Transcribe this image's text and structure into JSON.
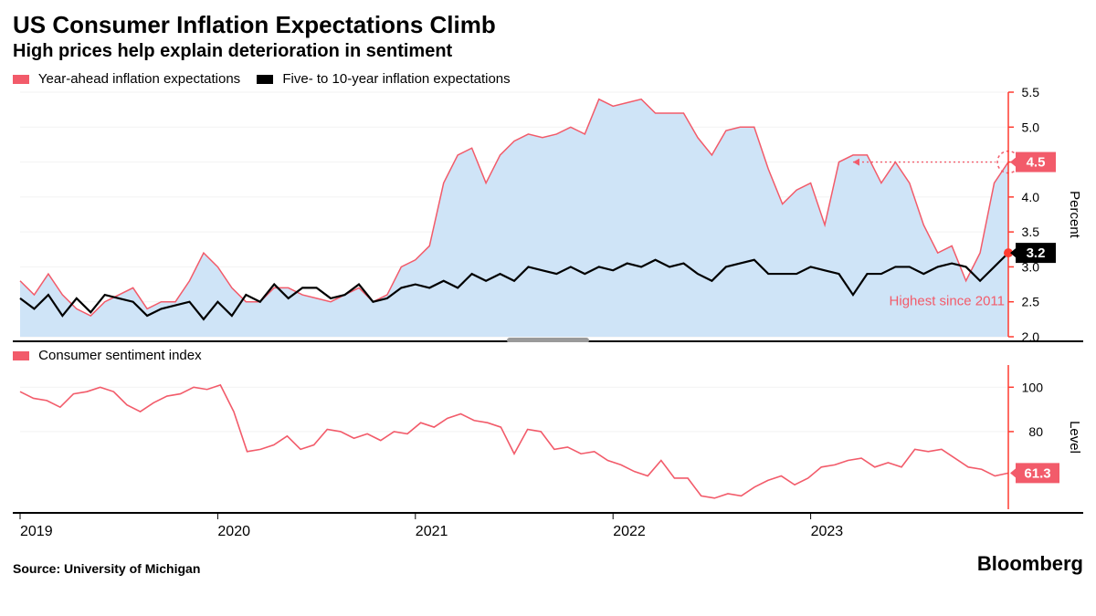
{
  "title": "US Consumer Inflation Expectations Climb",
  "subtitle": "High prices help explain deterioration in sentiment",
  "source": "Source: University of Michigan",
  "brand": "Bloomberg",
  "colors": {
    "pink": "#f25b6a",
    "black": "#000000",
    "area": "#cfe4f7",
    "grid": "#f2f2f2",
    "axis_red": "#ff3b30",
    "divider": "#000000",
    "handle": "#9a9a9a"
  },
  "x_axis": {
    "year_labels": [
      "2019",
      "2020",
      "2021",
      "2022",
      "2023"
    ],
    "label_fontsize": 16
  },
  "top_chart": {
    "legend": [
      {
        "label": "Year-ahead inflation expectations",
        "color": "#f25b6a"
      },
      {
        "label": "Five- to 10-year inflation expectations",
        "color": "#000000"
      }
    ],
    "y_axis": {
      "min": 2.0,
      "max": 5.5,
      "step": 0.5,
      "ticks": [
        "2.0",
        "2.5",
        "3.0",
        "3.5",
        "4.0",
        "4.5",
        "5.0",
        "5.5"
      ],
      "title": "Percent"
    },
    "series_year_ahead": {
      "type": "area-line",
      "color": "#f25b6a",
      "fill": "#cfe4f7",
      "line_width": 1.5,
      "callout": {
        "value": "4.5",
        "bg": "#f25b6a"
      },
      "values": [
        2.8,
        2.6,
        2.9,
        2.6,
        2.4,
        2.3,
        2.5,
        2.6,
        2.7,
        2.4,
        2.5,
        2.5,
        2.8,
        3.2,
        3.0,
        2.7,
        2.5,
        2.5,
        2.7,
        2.7,
        2.6,
        2.55,
        2.5,
        2.6,
        2.7,
        2.5,
        2.6,
        3.0,
        3.1,
        3.3,
        4.2,
        4.6,
        4.7,
        4.2,
        4.6,
        4.8,
        4.9,
        4.85,
        4.9,
        5.0,
        4.9,
        5.4,
        5.3,
        5.35,
        5.4,
        5.2,
        5.2,
        5.2,
        4.85,
        4.6,
        4.95,
        5.0,
        5.0,
        4.4,
        3.9,
        4.1,
        4.2,
        3.6,
        4.5,
        4.6,
        4.6,
        4.2,
        4.5,
        4.2,
        3.6,
        3.2,
        3.3,
        2.8,
        3.2,
        4.2,
        4.5
      ]
    },
    "series_five_ten": {
      "type": "line",
      "color": "#000000",
      "line_width": 2.2,
      "marker_end": {
        "color": "#ff3b30",
        "size": 5
      },
      "callout": {
        "value": "3.2",
        "bg": "#000000"
      },
      "values": [
        2.55,
        2.4,
        2.6,
        2.3,
        2.55,
        2.35,
        2.6,
        2.55,
        2.5,
        2.3,
        2.4,
        2.45,
        2.5,
        2.25,
        2.5,
        2.3,
        2.6,
        2.5,
        2.75,
        2.55,
        2.7,
        2.7,
        2.55,
        2.6,
        2.75,
        2.5,
        2.55,
        2.7,
        2.75,
        2.7,
        2.8,
        2.7,
        2.9,
        2.8,
        2.9,
        2.8,
        3.0,
        2.95,
        2.9,
        3.0,
        2.9,
        3.0,
        2.95,
        3.05,
        3.0,
        3.1,
        3.0,
        3.05,
        2.9,
        2.8,
        3.0,
        3.05,
        3.1,
        2.9,
        2.9,
        2.9,
        3.0,
        2.95,
        2.9,
        2.6,
        2.9,
        2.9,
        3.0,
        3.0,
        2.9,
        3.0,
        3.05,
        3.0,
        2.8,
        3.0,
        3.2
      ]
    },
    "annotation": {
      "text": "Highest since 2011",
      "color": "#f25b6a",
      "circle_at_end": true,
      "arrow": true
    }
  },
  "bottom_chart": {
    "legend": [
      {
        "label": "Consumer sentiment index",
        "color": "#f25b6a"
      }
    ],
    "y_axis": {
      "min": 45,
      "max": 110,
      "ticks": [
        "100",
        "80"
      ],
      "tick_vals": [
        100,
        80
      ],
      "title": "Level"
    },
    "series_sentiment": {
      "type": "line",
      "color": "#f25b6a",
      "line_width": 1.6,
      "callout": {
        "value": "61.3",
        "bg": "#f25b6a"
      },
      "values": [
        98,
        95,
        94,
        91,
        97,
        98,
        100,
        98,
        92,
        89,
        93,
        96,
        97,
        100,
        99,
        101,
        89,
        71,
        72,
        74,
        78,
        72,
        74,
        81,
        80,
        77,
        79,
        76,
        80,
        79,
        84,
        82,
        86,
        88,
        85,
        84,
        82,
        70,
        81,
        80,
        72,
        73,
        70,
        71,
        67,
        65,
        62,
        60,
        67,
        59,
        59,
        51,
        50,
        52,
        51,
        55,
        58,
        60,
        56,
        59,
        64,
        65,
        67,
        68,
        64,
        66,
        64,
        72,
        71,
        72,
        68,
        64,
        63,
        60,
        61.3
      ]
    }
  }
}
